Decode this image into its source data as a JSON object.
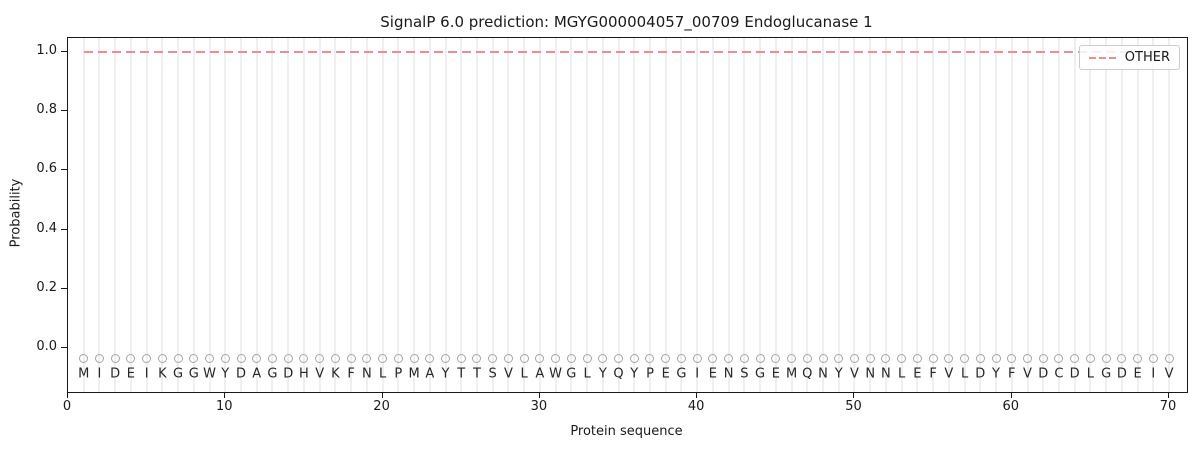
{
  "chart_data": {
    "type": "line",
    "title": "SignalP 6.0 prediction: MGYG000004057_00709 Endoglucanase 1",
    "xlabel": "Protein sequence",
    "ylabel": "Probability",
    "xlim": [
      0,
      71.14
    ],
    "ylim": [
      -0.149,
      1.047
    ],
    "grid": {
      "vertical_line_per_residue": true,
      "color": "#efefef"
    },
    "x_ticks": [
      {
        "v": 0,
        "label": "0"
      },
      {
        "v": 10,
        "label": "10"
      },
      {
        "v": 20,
        "label": "20"
      },
      {
        "v": 30,
        "label": "30"
      },
      {
        "v": 40,
        "label": "40"
      },
      {
        "v": 50,
        "label": "50"
      },
      {
        "v": 60,
        "label": "60"
      },
      {
        "v": 70,
        "label": "70"
      }
    ],
    "y_ticks": [
      {
        "v": 0.0,
        "label": "0.0"
      },
      {
        "v": 0.2,
        "label": "0.2"
      },
      {
        "v": 0.4,
        "label": "0.4"
      },
      {
        "v": 0.6,
        "label": "0.6"
      },
      {
        "v": 0.8,
        "label": "0.8"
      },
      {
        "v": 1.0,
        "label": "1.0"
      }
    ],
    "legend": {
      "position": "upper-right",
      "entries": [
        {
          "label": "OTHER",
          "color": "#f28b8b",
          "style": "dashed"
        }
      ]
    },
    "sequence": "MIDEIKGGWYDAGDHVKFNLPMAYTTSVLAWGLYQYPEGIENSGEMQNYVNNLEFVLDYFVDCDLGDEIV",
    "residue_marker": {
      "shape": "open-circle",
      "color": "#a6a6a6"
    },
    "series": [
      {
        "name": "OTHER",
        "style": "dashed",
        "color": "#f28b8b",
        "x_start": 1,
        "x_end": 70,
        "values": [
          1.0,
          1.0,
          1.0,
          1.0,
          1.0,
          1.0,
          1.0,
          1.0,
          1.0,
          1.0,
          1.0,
          1.0,
          1.0,
          1.0,
          1.0,
          1.0,
          1.0,
          1.0,
          1.0,
          1.0,
          1.0,
          1.0,
          1.0,
          1.0,
          1.0,
          1.0,
          1.0,
          1.0,
          1.0,
          1.0,
          1.0,
          1.0,
          1.0,
          1.0,
          1.0,
          1.0,
          1.0,
          1.0,
          1.0,
          1.0,
          1.0,
          1.0,
          1.0,
          1.0,
          1.0,
          1.0,
          1.0,
          1.0,
          1.0,
          1.0,
          1.0,
          1.0,
          1.0,
          1.0,
          1.0,
          1.0,
          1.0,
          1.0,
          1.0,
          1.0,
          1.0,
          1.0,
          1.0,
          1.0,
          1.0,
          1.0,
          1.0,
          1.0,
          1.0,
          1.0
        ]
      }
    ]
  }
}
